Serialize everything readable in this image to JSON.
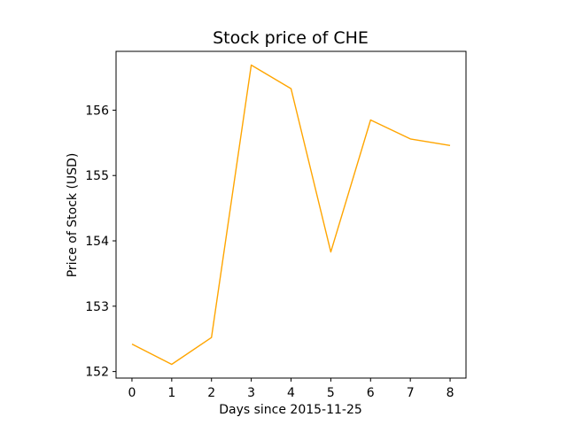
{
  "chart_data": {
    "type": "line",
    "title": "Stock price of CHE",
    "xlabel": "Days since 2015-11-25",
    "ylabel": "Price of Stock (USD)",
    "x": [
      0,
      1,
      2,
      3,
      4,
      5,
      6,
      7,
      8
    ],
    "series": [
      {
        "values": [
          152.42,
          152.11,
          152.52,
          156.69,
          156.33,
          153.83,
          155.85,
          155.56,
          155.46
        ],
        "color": "#ffa500"
      }
    ],
    "xlim": [
      -0.4,
      8.4
    ],
    "ylim": [
      151.9,
      156.9
    ],
    "xticks": [
      "0",
      "1",
      "2",
      "3",
      "4",
      "5",
      "6",
      "7",
      "8"
    ],
    "yticks": [
      "152",
      "153",
      "154",
      "155",
      "156"
    ],
    "grid": false,
    "legend": "none"
  }
}
